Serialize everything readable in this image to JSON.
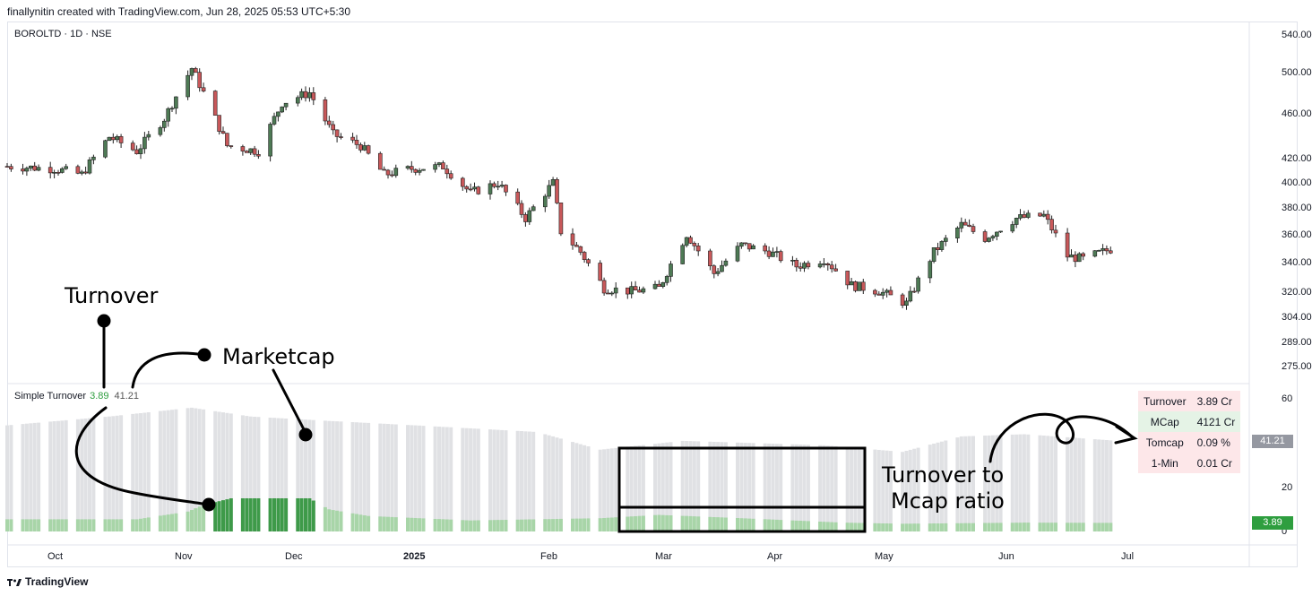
{
  "header": {
    "credit": "finallynitin created with TradingView.com, Jun 28, 2025 05:53 UTC+5:30"
  },
  "symbol": "BOROLTD · 1D · NSE",
  "indicator": {
    "name": "Simple Turnover",
    "v1": "3.89",
    "v2": "41.21"
  },
  "colors": {
    "up": "#4e7a55",
    "down": "#c8585a",
    "turnover": "#a8d5a8",
    "turnover_hi": "#3e9a49",
    "mcap": "#e0e1e4"
  },
  "price_axis": {
    "labels": [
      "540.00",
      "500.00",
      "460.00",
      "420.00",
      "400.00",
      "380.00",
      "360.00",
      "340.00",
      "320.00",
      "304.00",
      "289.00",
      "275.00"
    ]
  },
  "ind_axis": {
    "labels": [
      "60",
      "20",
      "0"
    ],
    "tag_mcap": "41.21",
    "tag_turnover": "3.89"
  },
  "time_axis": {
    "labels": [
      "Oct",
      "Nov",
      "Dec",
      "2025",
      "Feb",
      "Mar",
      "Apr",
      "May",
      "Jun",
      "Jul"
    ]
  },
  "stats_table": [
    {
      "key": "Turnover",
      "value": "3.89 Cr"
    },
    {
      "key": "MCap",
      "value": "4121 Cr"
    },
    {
      "key": "Tomcap",
      "value": "0.09 %"
    },
    {
      "key": "1-Min",
      "value": "0.01 Cr"
    }
  ],
  "annotations": {
    "turnover": "Turnover",
    "marketcap": "Marketcap",
    "ratio1": "Turnover to",
    "ratio2": "Mcap ratio"
  },
  "footer": {
    "brand": "TradingView"
  },
  "chart_data": {
    "type": "candlestick",
    "title": "BOROLTD · 1D · NSE",
    "ylim": [
      270,
      545
    ],
    "log_scale": true,
    "x_range": [
      "2024-09-19",
      "2025-07-04"
    ],
    "series": [
      {
        "name": "price",
        "anchors": [
          [
            "2024-09-19",
            412
          ],
          [
            "2024-10-01",
            410
          ],
          [
            "2024-10-08",
            405
          ],
          [
            "2024-10-15",
            438
          ],
          [
            "2024-10-22",
            425
          ],
          [
            "2024-10-29",
            455
          ],
          [
            "2024-11-05",
            505
          ],
          [
            "2024-11-08",
            480
          ],
          [
            "2024-11-14",
            430
          ],
          [
            "2024-11-22",
            425
          ],
          [
            "2024-11-28",
            470
          ],
          [
            "2024-12-05",
            480
          ],
          [
            "2024-12-11",
            440
          ],
          [
            "2024-12-18",
            430
          ],
          [
            "2024-12-24",
            405
          ],
          [
            "2024-12-31",
            410
          ],
          [
            "2025-01-08",
            412
          ],
          [
            "2025-01-15",
            390
          ],
          [
            "2025-01-22",
            398
          ],
          [
            "2025-01-29",
            370
          ],
          [
            "2025-02-05",
            398
          ],
          [
            "2025-02-07",
            360
          ],
          [
            "2025-02-12",
            345
          ],
          [
            "2025-02-18",
            320
          ],
          [
            "2025-02-25",
            318
          ],
          [
            "2025-03-04",
            320
          ],
          [
            "2025-03-11",
            358
          ],
          [
            "2025-03-18",
            330
          ],
          [
            "2025-03-25",
            350
          ],
          [
            "2025-04-01",
            345
          ],
          [
            "2025-04-08",
            335
          ],
          [
            "2025-04-15",
            340
          ],
          [
            "2025-04-22",
            322
          ],
          [
            "2025-04-29",
            318
          ],
          [
            "2025-05-06",
            310
          ],
          [
            "2025-05-13",
            345
          ],
          [
            "2025-05-20",
            365
          ],
          [
            "2025-05-26",
            355
          ],
          [
            "2025-06-03",
            370
          ],
          [
            "2025-06-10",
            372
          ],
          [
            "2025-06-16",
            342
          ],
          [
            "2025-06-20",
            340
          ],
          [
            "2025-06-27",
            347
          ]
        ]
      },
      {
        "name": "Simple Turnover",
        "anchors": [
          [
            "2024-09-19",
            5.5
          ],
          [
            "2024-10-22",
            5.5
          ],
          [
            "2024-11-04",
            9
          ],
          [
            "2024-11-08",
            12
          ],
          [
            "2024-11-15",
            15
          ],
          [
            "2024-12-05",
            15
          ],
          [
            "2024-12-10",
            10
          ],
          [
            "2024-12-20",
            7
          ],
          [
            "2025-01-15",
            5
          ],
          [
            "2025-02-17",
            6
          ],
          [
            "2025-03-04",
            7.5
          ],
          [
            "2025-03-25",
            6
          ],
          [
            "2025-04-20",
            4
          ],
          [
            "2025-05-05",
            3.5
          ],
          [
            "2025-06-05",
            4
          ],
          [
            "2025-06-27",
            3.89
          ]
        ]
      },
      {
        "name": "MCap",
        "anchors": [
          [
            "2024-09-19",
            48
          ],
          [
            "2024-10-15",
            52
          ],
          [
            "2024-11-05",
            56
          ],
          [
            "2024-11-20",
            52
          ],
          [
            "2024-12-10",
            50
          ],
          [
            "2025-01-01",
            48
          ],
          [
            "2025-02-01",
            45
          ],
          [
            "2025-02-17",
            37
          ],
          [
            "2025-03-10",
            41
          ],
          [
            "2025-04-15",
            39
          ],
          [
            "2025-05-05",
            36
          ],
          [
            "2025-05-20",
            43
          ],
          [
            "2025-06-05",
            44
          ],
          [
            "2025-06-27",
            41.21
          ]
        ]
      }
    ]
  }
}
